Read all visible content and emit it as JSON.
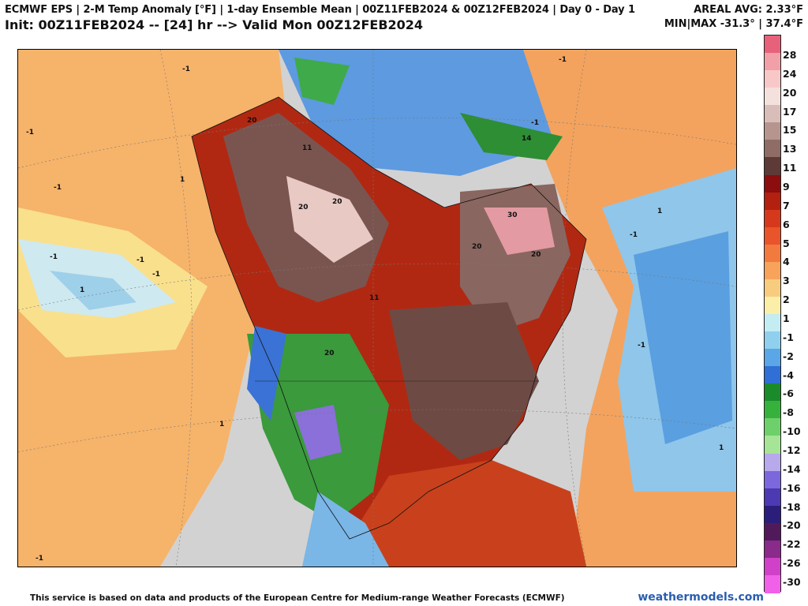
{
  "header": {
    "line1": "ECMWF EPS | 2-M Temp Anomaly [°F] | 1-day Ensemble Mean | 00Z11FEB2024 & 00Z12FEB2024 | Day 0 - Day 1",
    "line2": "Init: 00Z11FEB2024 -- [24] hr --> Valid Mon 00Z12FEB2024",
    "areal_avg": "AREAL AVG: 2.33°F",
    "minmax": "MIN|MAX -31.3° | 37.4°F"
  },
  "map": {
    "contour_labels": [
      "20",
      "20",
      "20",
      "20",
      "30",
      "20",
      "20",
      "14",
      "11",
      "11",
      "-1",
      "-1",
      "-1",
      "-1",
      "-1",
      "-1",
      "-1",
      "-1",
      "-1",
      "-1",
      "-1",
      "1",
      "1",
      "1",
      "1",
      "1"
    ]
  },
  "colorbar": {
    "labels": [
      "28",
      "24",
      "20",
      "17",
      "15",
      "13",
      "11",
      "9",
      "7",
      "6",
      "5",
      "4",
      "3",
      "2",
      "1",
      "-1",
      "-2",
      "-4",
      "-6",
      "-8",
      "-10",
      "-12",
      "-14",
      "-16",
      "-18",
      "-20",
      "-22",
      "-26",
      "-30"
    ],
    "colors": [
      "#e8617a",
      "#f2a0a8",
      "#f8c8c8",
      "#f4e1de",
      "#d8bdb8",
      "#b7958f",
      "#8f6c66",
      "#5e3a36",
      "#8b0d0d",
      "#b3200f",
      "#d6381b",
      "#e9542a",
      "#f27a3f",
      "#f7a35b",
      "#f8cc7e",
      "#fbeea9",
      "#c3ecf3",
      "#8fd0ee",
      "#5aa6e6",
      "#2f6fd6",
      "#1a8a2a",
      "#36b23c",
      "#6ed06a",
      "#a6e596",
      "#b8a8ec",
      "#7c68dc",
      "#4b3ab2",
      "#2b1e7a",
      "#501a5a",
      "#8a2a8a",
      "#d040c8",
      "#f060e8"
    ]
  },
  "footer": {
    "attribution": "This service is based on data and products of the European Centre for Medium-range Weather Forecasts (ECMWF)",
    "brand": "weathermodels.com"
  }
}
